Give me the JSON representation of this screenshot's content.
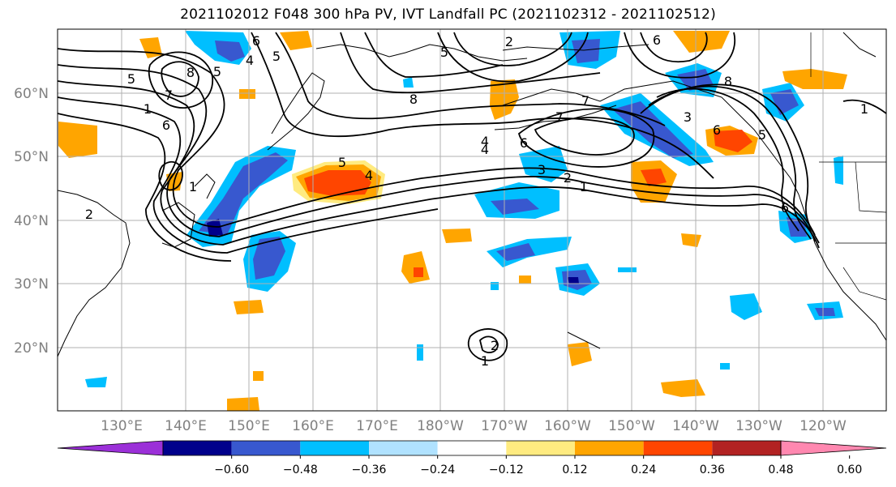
{
  "title": "2021102012 F048 300 hPa PV, IVT Landfall PC (2021102312 - 2021102512)",
  "lat_labels": [
    "60°N",
    "50°N",
    "40°N",
    "30°N",
    "20°N"
  ],
  "lon_labels": [
    "130°E",
    "140°E",
    "150°E",
    "160°E",
    "170°E",
    "180°W",
    "170°W",
    "160°W",
    "150°W",
    "140°W",
    "130°W",
    "120°W"
  ],
  "colorbar": {
    "tick_labels": [
      "−0.60",
      "−0.48",
      "−0.36",
      "−0.24",
      "−0.12",
      "0.12",
      "0.24",
      "0.36",
      "0.48",
      "0.60"
    ],
    "colors": [
      "#9b30d8",
      "#00008b",
      "#3858cf",
      "#00bfff",
      "#b0e2ff",
      "#ffffff",
      "#ffeb80",
      "#ffa500",
      "#ff4500",
      "#b22222",
      "#ff88b0"
    ]
  },
  "pv_contour_labels": [
    "6",
    "5",
    "4",
    "8",
    "5",
    "7",
    "6",
    "5",
    "4",
    "1",
    "2",
    "6",
    "8",
    "7",
    "6",
    "4",
    "3",
    "2",
    "1",
    "5",
    "4",
    "3",
    "8",
    "7",
    "6",
    "5",
    "1",
    "2",
    "6",
    "1",
    "5",
    "2",
    "1"
  ],
  "colors": {
    "grid": "#b0b0b0",
    "coast": "#000000",
    "contour": "#000000"
  }
}
